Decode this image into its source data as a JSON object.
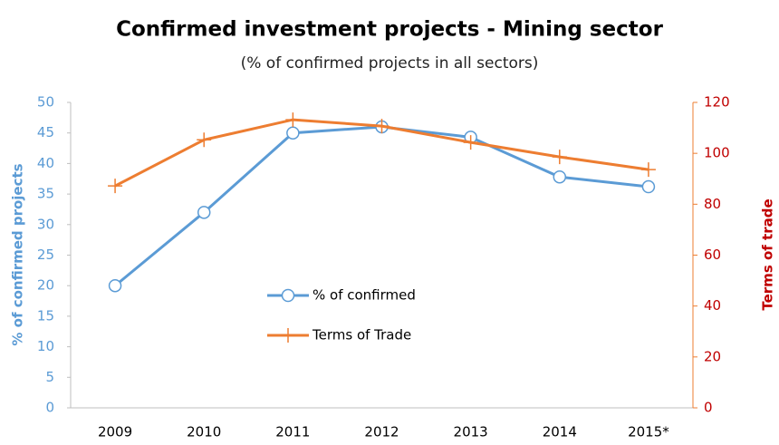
{
  "chart_data": {
    "type": "line",
    "title": "Confirmed investment projects - Mining sector",
    "subtitle": "(% of confirmed projects in all sectors)",
    "y_label": "% of confirmed projects",
    "y2_label": "Terms of trade",
    "categories": [
      "2009",
      "2010",
      "2011",
      "2012",
      "2013",
      "2014",
      "2015*"
    ],
    "series": [
      {
        "name": "% of confirmed",
        "color": "#5b9bd5",
        "values": [
          20,
          32,
          45,
          46,
          44.3,
          37.8,
          36.2
        ]
      },
      {
        "name": "Terms of Trade",
        "color": "#ed7d31",
        "axis": "y2",
        "values": [
          87.2,
          105.3,
          113.2,
          110.7,
          104.3,
          98.6,
          93.6
        ]
      }
    ],
    "ylim": [
      0,
      50
    ],
    "yticks": [
      0,
      5,
      10,
      15,
      20,
      25,
      30,
      35,
      40,
      45,
      50
    ],
    "y2lim": [
      0,
      120
    ],
    "y2ticks": [
      0,
      20,
      40,
      60,
      80,
      100,
      120
    ],
    "y_color": "#5b9bd5",
    "y2_color": "#c00000"
  }
}
